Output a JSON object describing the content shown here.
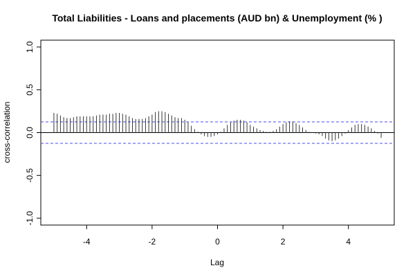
{
  "chart_data": {
    "type": "ccf",
    "title": "Total Liabilities - Loans and placements (AUD bn) & Unemployment (% )",
    "x_label": "Lag",
    "y_label": "cross-correlation",
    "x": [
      -5.0,
      -4.9,
      -4.8,
      -4.7,
      -4.6,
      -4.5,
      -4.4,
      -4.3,
      -4.2,
      -4.1,
      -4.0,
      -3.9,
      -3.8,
      -3.7,
      -3.6,
      -3.5,
      -3.4,
      -3.3,
      -3.2,
      -3.1,
      -3.0,
      -2.9,
      -2.8,
      -2.7,
      -2.6,
      -2.5,
      -2.4,
      -2.3,
      -2.2,
      -2.1,
      -2.0,
      -1.9,
      -1.8,
      -1.7,
      -1.6,
      -1.5,
      -1.4,
      -1.3,
      -1.2,
      -1.1,
      -1.0,
      -0.9,
      -0.8,
      -0.7,
      -0.6,
      -0.5,
      -0.4,
      -0.3,
      -0.2,
      -0.1,
      0.0,
      0.1,
      0.2,
      0.3,
      0.4,
      0.5,
      0.6,
      0.7,
      0.8,
      0.9,
      1.0,
      1.1,
      1.2,
      1.3,
      1.4,
      1.5,
      1.6,
      1.7,
      1.8,
      1.9,
      2.0,
      2.1,
      2.2,
      2.3,
      2.4,
      2.5,
      2.6,
      2.7,
      2.8,
      2.9,
      3.0,
      3.1,
      3.2,
      3.3,
      3.4,
      3.5,
      3.6,
      3.7,
      3.8,
      3.9,
      4.0,
      4.1,
      4.2,
      4.3,
      4.4,
      4.5,
      4.6,
      4.7,
      4.8,
      4.9,
      5.0
    ],
    "values": [
      0.23,
      0.22,
      0.2,
      0.18,
      0.17,
      0.17,
      0.18,
      0.19,
      0.19,
      0.19,
      0.19,
      0.19,
      0.19,
      0.2,
      0.21,
      0.21,
      0.21,
      0.22,
      0.22,
      0.23,
      0.23,
      0.22,
      0.21,
      0.19,
      0.17,
      0.16,
      0.16,
      0.16,
      0.17,
      0.19,
      0.21,
      0.24,
      0.25,
      0.25,
      0.24,
      0.22,
      0.2,
      0.18,
      0.17,
      0.17,
      0.15,
      0.12,
      0.08,
      0.04,
      0.01,
      -0.02,
      -0.04,
      -0.05,
      -0.05,
      -0.04,
      -0.02,
      0.01,
      0.05,
      0.09,
      0.12,
      0.14,
      0.15,
      0.15,
      0.14,
      0.12,
      0.09,
      0.07,
      0.05,
      0.03,
      0.02,
      0.01,
      0.01,
      0.02,
      0.04,
      0.07,
      0.1,
      0.12,
      0.13,
      0.13,
      0.11,
      0.09,
      0.06,
      0.03,
      0.01,
      0.0,
      -0.01,
      -0.02,
      -0.04,
      -0.07,
      -0.09,
      -0.1,
      -0.09,
      -0.07,
      -0.04,
      -0.01,
      0.03,
      0.06,
      0.09,
      0.1,
      0.1,
      0.09,
      0.07,
      0.05,
      0.02,
      -0.01,
      -0.06
    ],
    "color": "#333333",
    "confidence_bounds": [
      0.125,
      -0.125
    ],
    "bound_color": "#4a4af0",
    "xlim": [
      -5.4,
      5.4
    ],
    "ylim": [
      -1.08,
      1.08
    ],
    "xticks": [
      -4,
      -2,
      0,
      2,
      4
    ],
    "yticks": [
      {
        "value": -1,
        "label": "-1.0"
      },
      -0.5,
      {
        "value": 0,
        "label": "0.0"
      },
      0.5,
      {
        "value": 1,
        "label": "1.0"
      }
    ]
  }
}
